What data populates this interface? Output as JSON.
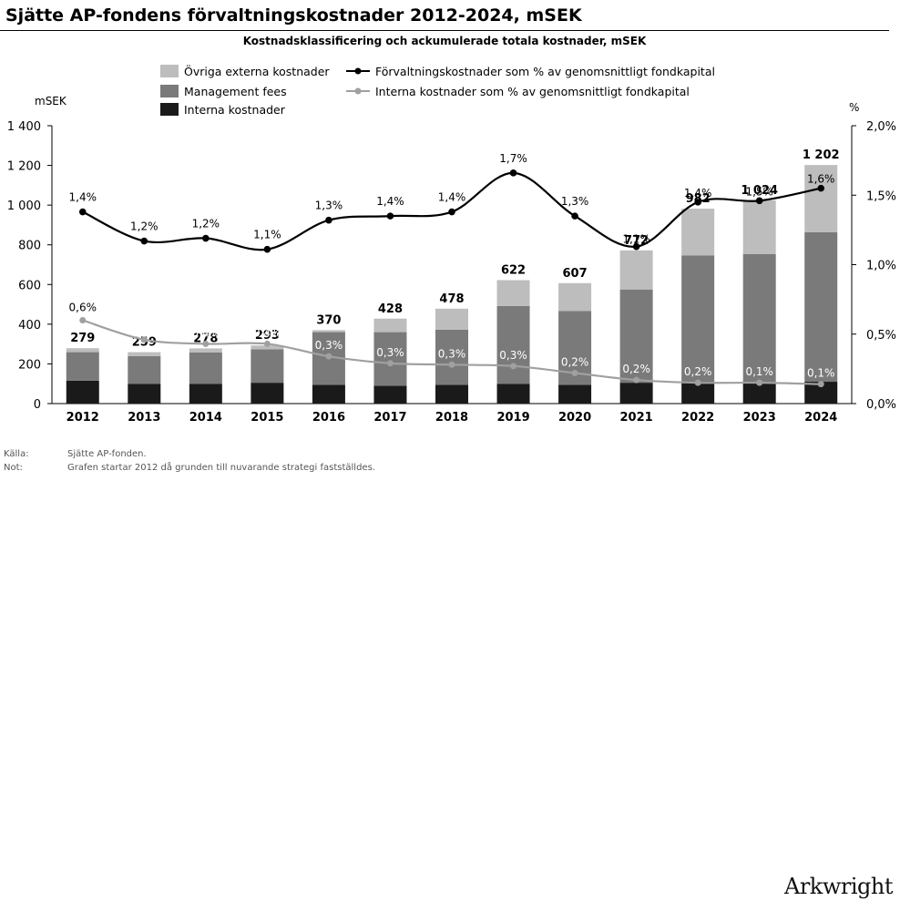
{
  "header": {
    "title": "Sjätte AP-fondens förvaltningskostnader 2012-2024, mSEK",
    "subtitle": "Kostnadsklassificering och ackumulerade totala kostnader, mSEK"
  },
  "footnotes": [
    {
      "label": "Källa:",
      "text": "Sjätte AP-fonden."
    },
    {
      "label": "Not:",
      "text": "Grafen startar 2012 då grunden till nuvarande strategi fastställdes."
    }
  ],
  "brand": "Arkwright",
  "colors": {
    "ovriga": "#bdbdbd",
    "management": "#7a7a7a",
    "interna": "#1a1a1a",
    "line_forv": "#000000",
    "line_interna": "#a0a0a0"
  },
  "chart_data": {
    "type": "bar",
    "stacked": true,
    "categories": [
      "2012",
      "2013",
      "2014",
      "2015",
      "2016",
      "2017",
      "2018",
      "2019",
      "2020",
      "2021",
      "2022",
      "2023",
      "2024"
    ],
    "y_left": {
      "label": "mSEK",
      "lim": [
        0,
        1400
      ],
      "ticks": [
        0,
        200,
        400,
        600,
        800,
        1000,
        1200,
        1400
      ],
      "tick_labels": [
        "0",
        "200",
        "400",
        "600",
        "800",
        "1 000",
        "1 200",
        "1 400"
      ]
    },
    "y_right": {
      "label": "%",
      "lim": [
        0,
        2.0
      ],
      "ticks": [
        0,
        0.5,
        1.0,
        1.5,
        2.0
      ],
      "tick_labels": [
        "0,0%",
        "0,5%",
        "1,0%",
        "1,5%",
        "2,0%"
      ]
    },
    "legend": [
      "Övriga externa kostnader",
      "Management fees",
      "Interna kostnader",
      "Förvaltningskostnader som % av genomsnittligt fondkapital",
      "Interna kostnader som % av genomsnittligt fondkapital"
    ],
    "series": [
      {
        "name": "Interna kostnader",
        "values": [
          115,
          100,
          100,
          105,
          95,
          90,
          95,
          100,
          95,
          105,
          110,
          105,
          110
        ]
      },
      {
        "name": "Management fees",
        "values": [
          144,
          139,
          158,
          168,
          265,
          270,
          277,
          392,
          372,
          470,
          636,
          649,
          754
        ]
      },
      {
        "name": "Övriga externa kostnader",
        "values": [
          20,
          20,
          20,
          20,
          10,
          68,
          106,
          130,
          140,
          197,
          236,
          270,
          338
        ]
      }
    ],
    "totals": [
      279,
      259,
      278,
      293,
      370,
      428,
      478,
      622,
      607,
      772,
      982,
      1024,
      1202
    ],
    "total_labels": [
      "279",
      "259",
      "278",
      "293",
      "370",
      "428",
      "478",
      "622",
      "607",
      "772",
      "982",
      "1 024",
      "1 202"
    ],
    "lines": [
      {
        "name": "Förvaltningskostnader som % av genomsnittligt fondkapital",
        "values": [
          1.38,
          1.17,
          1.19,
          1.11,
          1.32,
          1.35,
          1.38,
          1.66,
          1.35,
          1.13,
          1.45,
          1.46,
          1.55
        ],
        "labels": [
          "1,4%",
          "1,2%",
          "1,2%",
          "1,1%",
          "1,3%",
          "1,4%",
          "1,4%",
          "1,7%",
          "1,3%",
          "1,1%",
          "1,4%",
          "1,5%",
          "1,6%"
        ]
      },
      {
        "name": "Interna kostnader som % av genomsnittligt fondkapital",
        "values": [
          0.6,
          0.46,
          0.43,
          0.43,
          0.34,
          0.29,
          0.28,
          0.27,
          0.22,
          0.17,
          0.15,
          0.15,
          0.14
        ],
        "labels": [
          "0,6%",
          "0,5%",
          "0,4%",
          "0,4%",
          "0,3%",
          "0,3%",
          "0,3%",
          "0,3%",
          "0,2%",
          "0,2%",
          "0,2%",
          "0,1%",
          "0,1%"
        ]
      }
    ]
  }
}
